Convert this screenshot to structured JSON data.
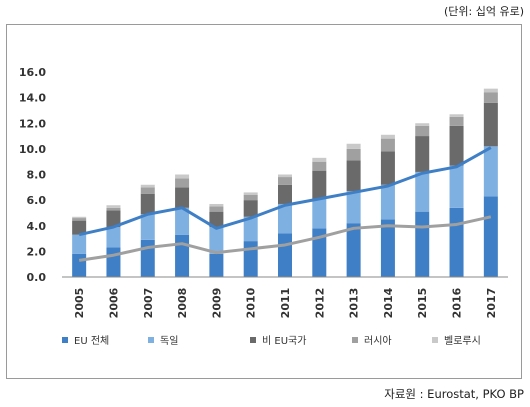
{
  "unit_label": "(단위: 십억 유로)",
  "source": "자료원 : Eurostat, PKO BP",
  "chart_data": {
    "type": "bar",
    "stacked": true,
    "categories": [
      "2005",
      "2006",
      "2007",
      "2008",
      "2009",
      "2010",
      "2011",
      "2012",
      "2013",
      "2014",
      "2015",
      "2016",
      "2017"
    ],
    "ylim": [
      0,
      16
    ],
    "yticks": [
      "0.0",
      "2.0",
      "4.0",
      "6.0",
      "8.0",
      "10.0",
      "12.0",
      "14.0",
      "16.0"
    ],
    "grid": false,
    "legend_position": "bottom",
    "series": [
      {
        "name": "EU 전체",
        "kind": "bar",
        "color": "#3f7fc6",
        "values": [
          1.8,
          2.3,
          2.9,
          3.3,
          1.8,
          2.8,
          3.4,
          3.8,
          4.2,
          4.5,
          5.1,
          5.4,
          6.3
        ]
      },
      {
        "name": "독일",
        "kind": "bar",
        "color": "#7fb0e2",
        "values": [
          1.5,
          1.6,
          2.0,
          2.1,
          2.1,
          1.9,
          2.3,
          2.3,
          2.5,
          2.7,
          3.1,
          3.3,
          3.9
        ]
      },
      {
        "name": "비 EU국가",
        "kind": "bar",
        "color": "#6a6a6a",
        "values": [
          1.1,
          1.3,
          1.6,
          1.6,
          1.2,
          1.3,
          1.5,
          2.2,
          2.4,
          2.6,
          2.8,
          3.1,
          3.4
        ]
      },
      {
        "name": "러시아",
        "kind": "bar",
        "color": "#a0a0a0",
        "values": [
          0.2,
          0.2,
          0.5,
          0.7,
          0.4,
          0.4,
          0.6,
          0.7,
          0.9,
          1.0,
          0.8,
          0.7,
          0.8
        ]
      },
      {
        "name": "벨로루시",
        "kind": "bar",
        "color": "#c9c9c9",
        "values": [
          0.1,
          0.2,
          0.2,
          0.3,
          0.2,
          0.2,
          0.2,
          0.3,
          0.4,
          0.3,
          0.2,
          0.2,
          0.3
        ]
      }
    ],
    "lines": [
      {
        "color": "#3f7fc6",
        "values": [
          3.3,
          3.9,
          4.9,
          5.4,
          3.8,
          4.6,
          5.6,
          6.1,
          6.6,
          7.1,
          8.1,
          8.6,
          10.1
        ]
      },
      {
        "color": "#a0a0a0",
        "values": [
          1.3,
          1.7,
          2.3,
          2.6,
          1.9,
          2.2,
          2.5,
          3.1,
          3.8,
          4.0,
          3.9,
          4.1,
          4.7
        ]
      }
    ]
  }
}
